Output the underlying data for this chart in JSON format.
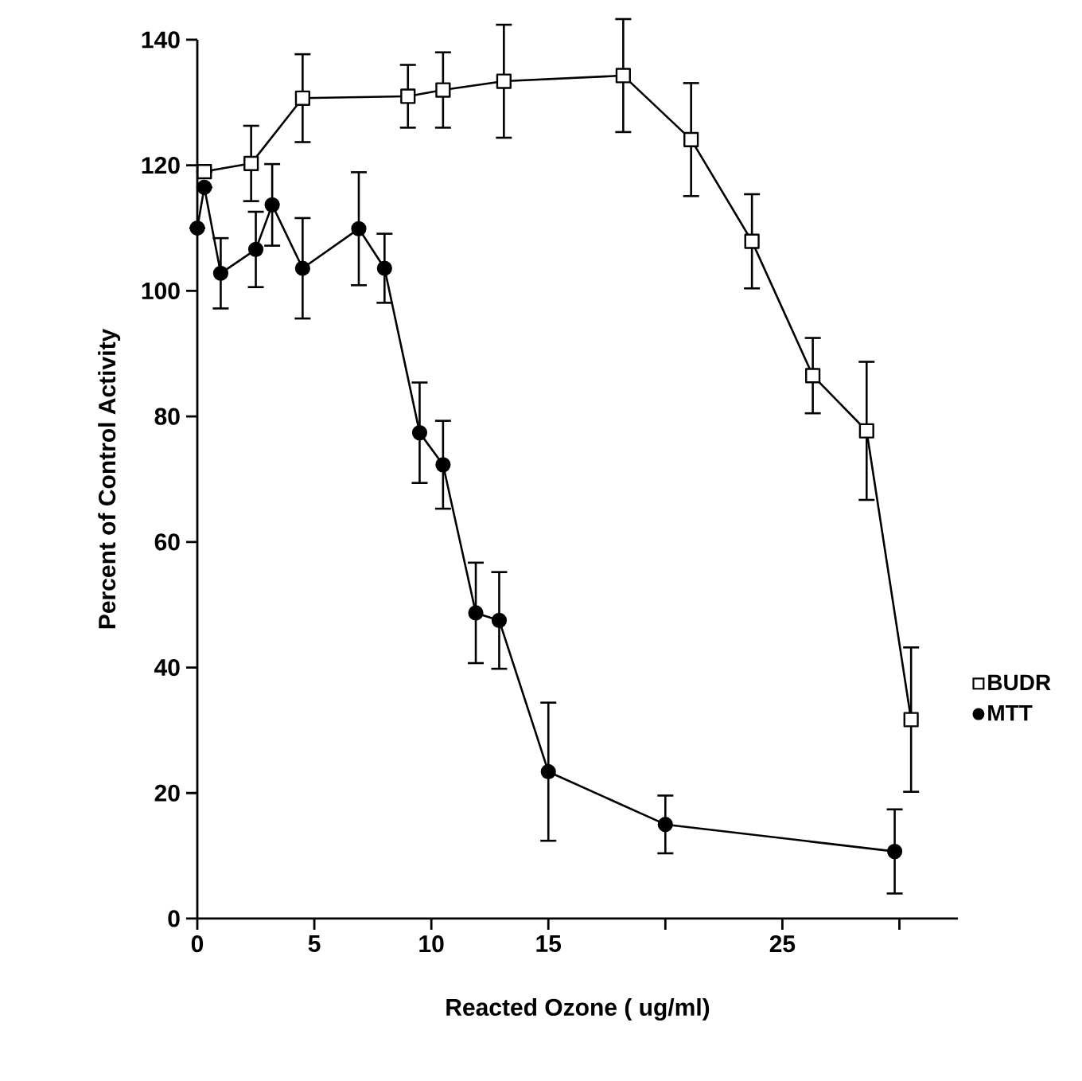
{
  "chart_data": {
    "type": "line",
    "xlabel": "Reacted Ozone ( ug/ml)",
    "ylabel": "Percent of Control Activity",
    "xlim": [
      0,
      32.5
    ],
    "ylim": [
      0,
      140
    ],
    "xticks": [
      0,
      5,
      10,
      15,
      {
        "value": 20,
        "label": null
      },
      25,
      {
        "value": 30,
        "label": null
      }
    ],
    "yticks": [
      0,
      20,
      40,
      60,
      80,
      100,
      120,
      140
    ],
    "legend": "right",
    "grid": false,
    "line_style": "solid",
    "series": [
      {
        "name": "BUDR",
        "color": "#000000",
        "marker": "square",
        "x": [
          0.3,
          2.3,
          4.5,
          9.0,
          10.5,
          13.1,
          18.2,
          21.1,
          23.7,
          26.3,
          28.6,
          30.5
        ],
        "values": [
          119,
          120.3,
          130.7,
          131,
          132,
          133.4,
          134.3,
          124.1,
          107.9,
          86.5,
          77.7,
          31.7
        ],
        "errors": [
          null,
          6,
          7,
          5,
          6,
          9,
          9,
          9,
          7.5,
          6,
          11,
          11.5
        ]
      },
      {
        "name": "MTT",
        "color": "#000000",
        "marker": "circle",
        "x": [
          0,
          0.3,
          1.0,
          2.5,
          3.2,
          4.5,
          6.9,
          8.0,
          9.5,
          10.5,
          11.9,
          12.9,
          15.0,
          20.0,
          29.8
        ],
        "values": [
          110,
          116.5,
          102.8,
          106.6,
          113.7,
          103.6,
          109.9,
          103.6,
          77.4,
          72.3,
          48.7,
          47.5,
          23.4,
          15,
          10.7
        ],
        "errors": [
          null,
          null,
          5.6,
          6,
          6.5,
          8,
          9,
          5.5,
          8,
          7,
          8,
          7.7,
          11,
          4.6,
          6.7
        ]
      }
    ]
  }
}
